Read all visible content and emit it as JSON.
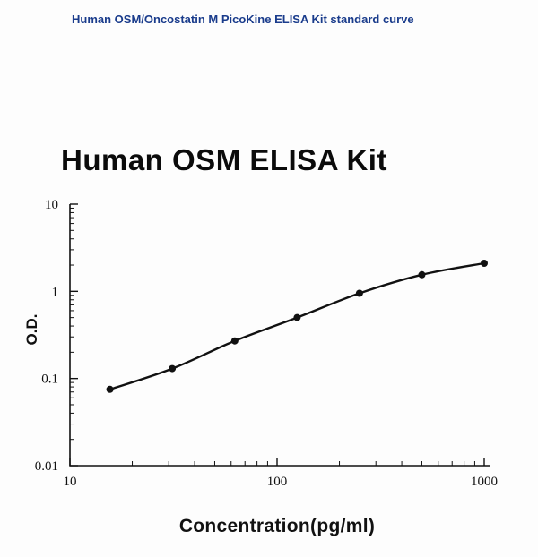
{
  "page": {
    "header": "Human OSM/Oncostatin M PicoKine ELISA Kit standard curve"
  },
  "colors": {
    "header_text": "#1a3c8c",
    "ink": "#111111",
    "background": "#fdfdfd"
  },
  "chart_data": {
    "type": "scatter",
    "title": "Human OSM ELISA Kit",
    "xlabel": "Concentration(pg/ml)",
    "ylabel": "O.D.",
    "xscale": "log",
    "yscale": "log",
    "xlim": [
      10,
      1000
    ],
    "ylim": [
      0.01,
      10
    ],
    "x_ticks": [
      10,
      100,
      1000
    ],
    "y_ticks": [
      10,
      1,
      0.1,
      0.01
    ],
    "grid": false,
    "legend": false,
    "series": [
      {
        "name": "standard curve",
        "x": [
          15.6,
          31.2,
          62.5,
          125,
          250,
          500,
          1000
        ],
        "y": [
          0.075,
          0.13,
          0.27,
          0.5,
          0.95,
          1.55,
          2.1
        ]
      }
    ]
  }
}
